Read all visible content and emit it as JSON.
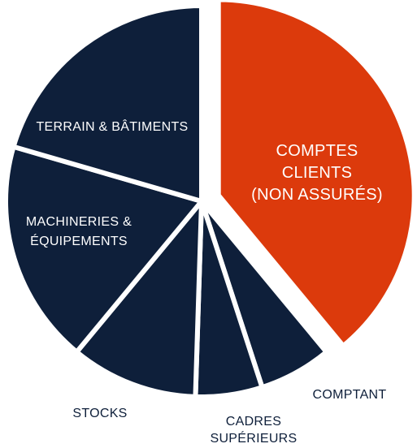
{
  "chart_data": {
    "type": "pie",
    "categories": [
      [
        "COMPTES",
        "CLIENTS",
        "(NON ASSURÉS)"
      ],
      [
        "COMPTANT"
      ],
      [
        "CADRES",
        "SUPÉRIEURS"
      ],
      [
        "STOCKS"
      ],
      [
        "MACHINERIES &",
        "ÉQUIPEMENTS"
      ],
      [
        "TERRAIN & BÂTIMENTS"
      ]
    ],
    "values": [
      39,
      6,
      5.5,
      10.5,
      18.5,
      20.5
    ],
    "colors": [
      "#dc3a0c",
      "#0e1f3a",
      "#0e1f3a",
      "#0e1f3a",
      "#0e1f3a",
      "#0e1f3a"
    ]
  }
}
